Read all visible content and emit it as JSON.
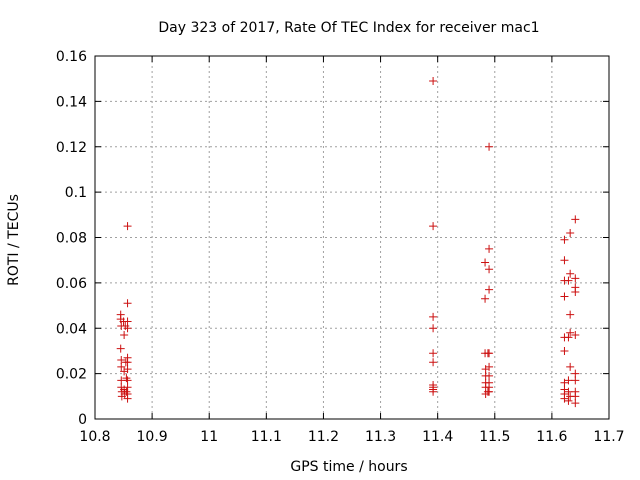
{
  "chart_data": {
    "type": "scatter",
    "title": "Day 323 of 2017, Rate Of TEC Index for receiver mac1",
    "xlabel": "GPS time / hours",
    "ylabel": "ROTI / TECUs",
    "xlim": [
      10.8,
      11.7
    ],
    "ylim": [
      0,
      0.16
    ],
    "x_ticks": [
      10.8,
      10.9,
      11.0,
      11.1,
      11.2,
      11.3,
      11.4,
      11.5,
      11.6,
      11.7
    ],
    "x_tick_labels": [
      "10.8",
      "10.9",
      "11",
      "11.1",
      "11.2",
      "11.3",
      "11.4",
      "11.5",
      "11.6",
      "11.7"
    ],
    "y_ticks": [
      0,
      0.02,
      0.04,
      0.06,
      0.08,
      0.1,
      0.12,
      0.14,
      0.16
    ],
    "y_tick_labels": [
      "0",
      "0.02",
      "0.04",
      "0.06",
      "0.08",
      "0.1",
      "0.12",
      "0.14",
      "0.16"
    ],
    "grid": true,
    "marker": "+",
    "color": "#cc1010",
    "series": [
      {
        "name": "mac1",
        "points": [
          [
            10.845,
            0.046
          ],
          [
            10.845,
            0.044
          ],
          [
            10.846,
            0.041
          ],
          [
            10.845,
            0.031
          ],
          [
            10.846,
            0.026
          ],
          [
            10.846,
            0.023
          ],
          [
            10.846,
            0.017
          ],
          [
            10.846,
            0.014
          ],
          [
            10.847,
            0.012
          ],
          [
            10.847,
            0.01
          ],
          [
            10.85,
            0.043
          ],
          [
            10.851,
            0.037
          ],
          [
            10.851,
            0.021
          ],
          [
            10.851,
            0.013
          ],
          [
            10.852,
            0.011
          ],
          [
            10.853,
            0.041
          ],
          [
            10.854,
            0.025
          ],
          [
            10.855,
            0.018
          ],
          [
            10.855,
            0.012
          ],
          [
            10.857,
            0.085
          ],
          [
            10.857,
            0.051
          ],
          [
            10.857,
            0.043
          ],
          [
            10.857,
            0.04
          ],
          [
            10.857,
            0.027
          ],
          [
            10.857,
            0.025
          ],
          [
            10.857,
            0.022
          ],
          [
            10.857,
            0.017
          ],
          [
            10.857,
            0.014
          ],
          [
            10.857,
            0.011
          ],
          [
            10.857,
            0.009
          ],
          [
            11.392,
            0.149
          ],
          [
            11.392,
            0.085
          ],
          [
            11.392,
            0.045
          ],
          [
            11.392,
            0.04
          ],
          [
            11.392,
            0.029
          ],
          [
            11.392,
            0.025
          ],
          [
            11.392,
            0.015
          ],
          [
            11.392,
            0.014
          ],
          [
            11.392,
            0.013
          ],
          [
            11.392,
            0.012
          ],
          [
            11.483,
            0.069
          ],
          [
            11.483,
            0.053
          ],
          [
            11.483,
            0.029
          ],
          [
            11.484,
            0.022
          ],
          [
            11.484,
            0.019
          ],
          [
            11.484,
            0.016
          ],
          [
            11.484,
            0.014
          ],
          [
            11.484,
            0.011
          ],
          [
            11.488,
            0.029
          ],
          [
            11.488,
            0.012
          ],
          [
            11.49,
            0.12
          ],
          [
            11.49,
            0.075
          ],
          [
            11.49,
            0.066
          ],
          [
            11.49,
            0.057
          ],
          [
            11.49,
            0.029
          ],
          [
            11.49,
            0.023
          ],
          [
            11.49,
            0.019
          ],
          [
            11.49,
            0.016
          ],
          [
            11.49,
            0.014
          ],
          [
            11.49,
            0.012
          ],
          [
            11.622,
            0.079
          ],
          [
            11.622,
            0.07
          ],
          [
            11.622,
            0.061
          ],
          [
            11.622,
            0.054
          ],
          [
            11.622,
            0.036
          ],
          [
            11.622,
            0.03
          ],
          [
            11.622,
            0.016
          ],
          [
            11.622,
            0.013
          ],
          [
            11.622,
            0.011
          ],
          [
            11.622,
            0.009
          ],
          [
            11.629,
            0.061
          ],
          [
            11.629,
            0.036
          ],
          [
            11.629,
            0.017
          ],
          [
            11.629,
            0.012
          ],
          [
            11.629,
            0.008
          ],
          [
            11.632,
            0.082
          ],
          [
            11.632,
            0.064
          ],
          [
            11.632,
            0.046
          ],
          [
            11.632,
            0.038
          ],
          [
            11.632,
            0.023
          ],
          [
            11.632,
            0.01
          ],
          [
            11.641,
            0.088
          ],
          [
            11.641,
            0.062
          ],
          [
            11.641,
            0.058
          ],
          [
            11.641,
            0.056
          ],
          [
            11.641,
            0.037
          ],
          [
            11.641,
            0.02
          ],
          [
            11.641,
            0.017
          ],
          [
            11.641,
            0.012
          ],
          [
            11.641,
            0.01
          ],
          [
            11.641,
            0.007
          ]
        ]
      }
    ]
  }
}
